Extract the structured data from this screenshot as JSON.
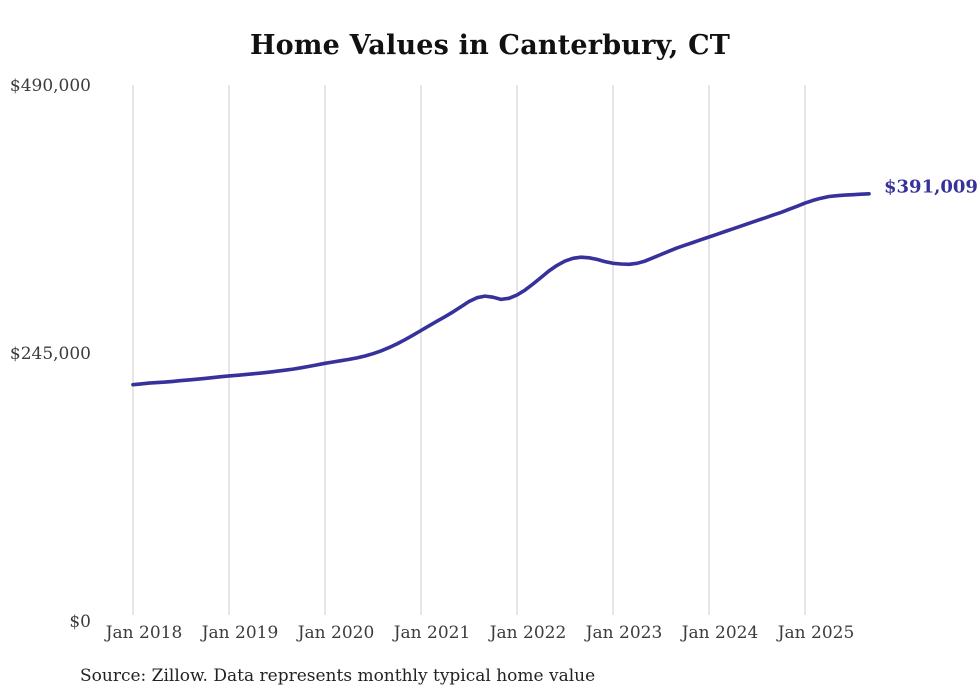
{
  "title": "Home Values in Canterbury, CT",
  "source_note": "Source: Zillow. Data represents monthly typical home value",
  "colors": {
    "line": "#37329b",
    "end_label": "#37329b",
    "gridline": "#cccccc",
    "title_text": "#111111",
    "axis_text": "#3c3c3c",
    "source_text": "#222222",
    "background": "#ffffff"
  },
  "chart_data": {
    "type": "line",
    "title": "Home Values in Canterbury, CT",
    "xlabel": "",
    "ylabel": "",
    "frequency": "monthly",
    "x_start": "Jan 2018",
    "x_end": "Sep 2025",
    "x_tick_labels": [
      "Jan 2018",
      "Jan 2019",
      "Jan 2020",
      "Jan 2021",
      "Jan 2022",
      "Jan 2023",
      "Jan 2024",
      "Jan 2025"
    ],
    "y_ticks": [
      {
        "label": "$0",
        "value": 0
      },
      {
        "label": "$245,000",
        "value": 245000
      },
      {
        "label": "$490,000",
        "value": 490000
      }
    ],
    "ylim": [
      0,
      490000
    ],
    "grid": "vertical-only",
    "legend": "none",
    "end_label": "$391,009",
    "end_value": 391009,
    "series": [
      {
        "name": "Typical home value",
        "values": [
          216500,
          217200,
          217900,
          218400,
          218900,
          219500,
          220200,
          220900,
          221500,
          222200,
          223000,
          223800,
          224500,
          225100,
          225700,
          226400,
          227100,
          227900,
          228800,
          229700,
          230700,
          231900,
          233200,
          234600,
          236000,
          237200,
          238400,
          239600,
          241000,
          242700,
          244800,
          247400,
          250400,
          253800,
          257600,
          261700,
          266000,
          270300,
          274500,
          278600,
          283000,
          287800,
          292500,
          296000,
          297500,
          296500,
          294500,
          295500,
          298500,
          303000,
          308500,
          314500,
          320500,
          325500,
          329500,
          332000,
          333000,
          332500,
          331000,
          329000,
          327500,
          326800,
          326500,
          327500,
          329500,
          332500,
          335500,
          338500,
          341500,
          344000,
          346500,
          349000,
          351500,
          354000,
          356500,
          359000,
          361500,
          364000,
          366500,
          369000,
          371500,
          374000,
          376800,
          379600,
          382500,
          385000,
          387000,
          388500,
          389300,
          389800,
          390200,
          390600,
          391009
        ]
      }
    ]
  }
}
